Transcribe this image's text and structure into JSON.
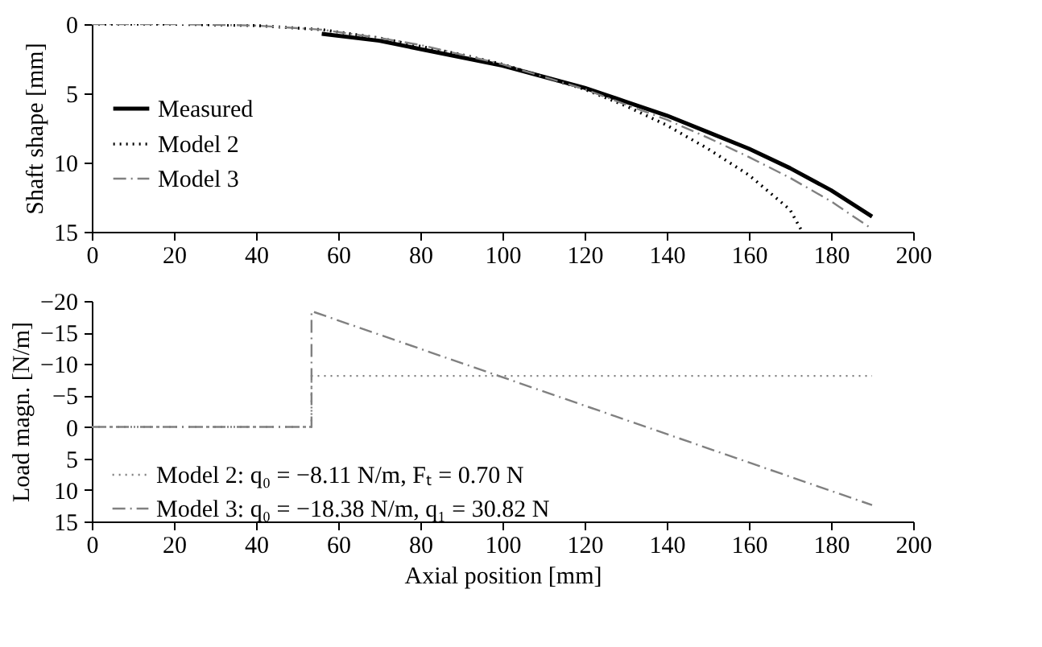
{
  "chart_data": [
    {
      "type": "line",
      "ylabel": "Shaft shape [mm]",
      "xlim": [
        0,
        200
      ],
      "xticks": [
        0,
        20,
        40,
        60,
        80,
        100,
        120,
        140,
        160,
        180,
        200
      ],
      "ylim": [
        15,
        0
      ],
      "yticks": [
        0,
        5,
        10,
        15
      ],
      "grid": false,
      "legend": "left",
      "marker": "none",
      "series": [
        {
          "name": "Measured",
          "color": "#000000",
          "line_style": "solid",
          "x": [
            56,
            70,
            80,
            90,
            100,
            110,
            120,
            130,
            140,
            150,
            160,
            170,
            180,
            190
          ],
          "values": [
            0.7,
            1.2,
            1.8,
            2.4,
            3.0,
            3.8,
            4.6,
            5.6,
            6.6,
            7.8,
            9.0,
            10.4,
            12.0,
            13.9
          ]
        },
        {
          "name": "Model 2",
          "color": "#000000",
          "line_style": "dotted",
          "x": [
            0,
            20,
            40,
            56,
            70,
            80,
            90,
            100,
            110,
            120,
            130,
            140,
            150,
            160,
            170,
            173
          ],
          "values": [
            0,
            0,
            0.1,
            0.4,
            1.0,
            1.6,
            2.2,
            2.9,
            3.8,
            4.7,
            5.9,
            7.3,
            9.0,
            10.9,
            13.4,
            15
          ]
        },
        {
          "name": "Model 3",
          "color": "#808080",
          "line_style": "dashdot",
          "x": [
            0,
            20,
            40,
            56,
            70,
            80,
            90,
            100,
            110,
            120,
            130,
            140,
            150,
            160,
            170,
            180,
            190
          ],
          "values": [
            0,
            0,
            0.1,
            0.4,
            1.0,
            1.5,
            2.2,
            2.9,
            3.8,
            4.7,
            5.8,
            6.9,
            8.2,
            9.6,
            11.1,
            12.8,
            14.8
          ]
        }
      ]
    },
    {
      "type": "line",
      "xlabel": "Axial position [mm]",
      "ylabel": "Load magn. [N/m]",
      "xlim": [
        0,
        200
      ],
      "xticks": [
        0,
        20,
        40,
        60,
        80,
        100,
        120,
        140,
        160,
        180,
        200
      ],
      "ylim": [
        15,
        -20
      ],
      "yticks": [
        {
          "value": -20,
          "label": "−20"
        },
        {
          "value": -15,
          "label": "−15"
        },
        {
          "value": -10,
          "label": "−10"
        },
        {
          "value": -5,
          "label": "−5"
        },
        0,
        5,
        10,
        15
      ],
      "grid": false,
      "legend": "bottom left",
      "marker": "none",
      "series": [
        {
          "name": "Model 2: q₀ = −8.11 N/m, Fₜ = 0.70 N",
          "color": "#808080",
          "line_style": "dotted",
          "x": [
            0,
            53.5,
            53.5,
            190
          ],
          "values": [
            0,
            0,
            -8.11,
            -8.11
          ]
        },
        {
          "name": "Model 3: q₀ = −18.38 N/m, q₁ = 30.82 N",
          "color": "#808080",
          "line_style": "dashdot",
          "x": [
            0,
            53.5,
            53.5,
            190
          ],
          "values": [
            0,
            0,
            -18.38,
            12.4
          ]
        }
      ]
    }
  ]
}
